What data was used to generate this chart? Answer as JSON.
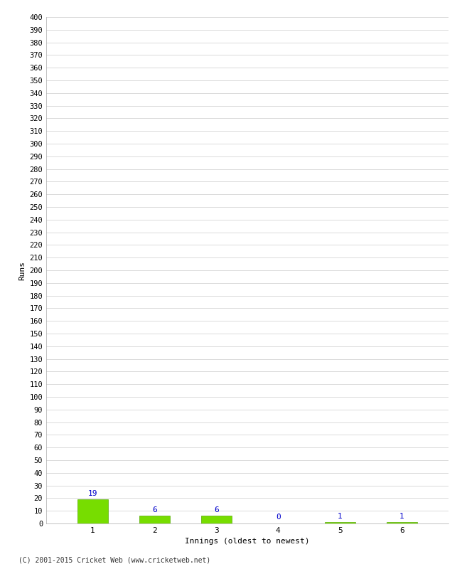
{
  "categories": [
    1,
    2,
    3,
    4,
    5,
    6
  ],
  "values": [
    19,
    6,
    6,
    0,
    1,
    1
  ],
  "bar_color": "#77dd00",
  "bar_edge_color": "#55aa00",
  "label_color": "#0000cc",
  "ylabel": "Runs",
  "xlabel": "Innings (oldest to newest)",
  "ylim": [
    0,
    400
  ],
  "ytick_step": 10,
  "background_color": "#ffffff",
  "grid_color": "#cccccc",
  "footer": "(C) 2001-2015 Cricket Web (www.cricketweb.net)"
}
